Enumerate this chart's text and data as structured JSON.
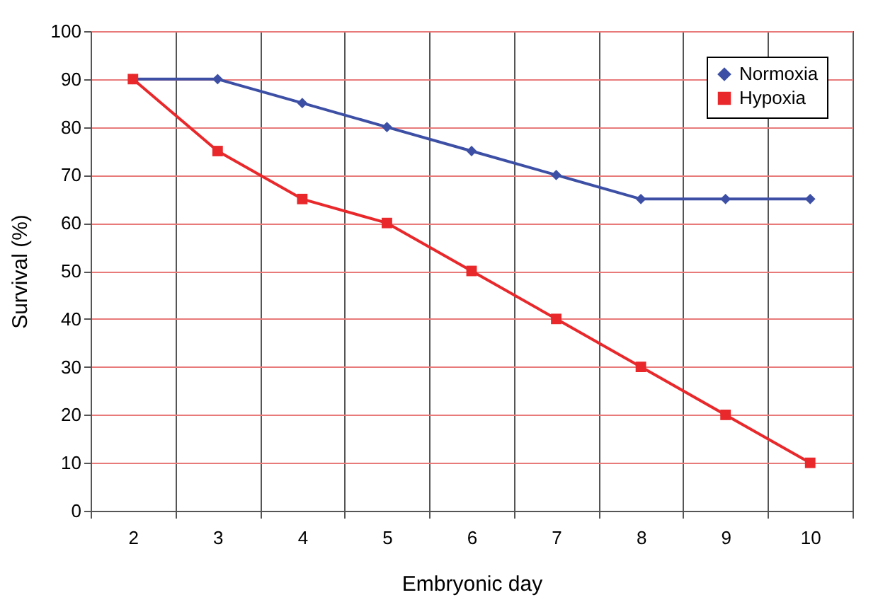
{
  "chart_data": {
    "type": "line",
    "xlabel": "Embryonic day",
    "ylabel": "Survival (%)",
    "categories": [
      "2",
      "3",
      "4",
      "5",
      "6",
      "7",
      "8",
      "9",
      "10"
    ],
    "series": [
      {
        "name": "Normoxia",
        "color": "#3c4fa5",
        "marker": "diamond",
        "values": [
          90,
          90,
          85,
          80,
          75,
          70,
          65,
          65,
          65
        ]
      },
      {
        "name": "Hypoxia",
        "color": "#e8282b",
        "marker": "square",
        "values": [
          90,
          75,
          65,
          60,
          50,
          40,
          30,
          20,
          10
        ]
      }
    ],
    "ylim": [
      0,
      100
    ],
    "yticks": [
      0,
      10,
      20,
      30,
      40,
      50,
      60,
      70,
      80,
      90,
      100
    ],
    "grid": true,
    "legend": "top right",
    "line_style": "solid"
  }
}
